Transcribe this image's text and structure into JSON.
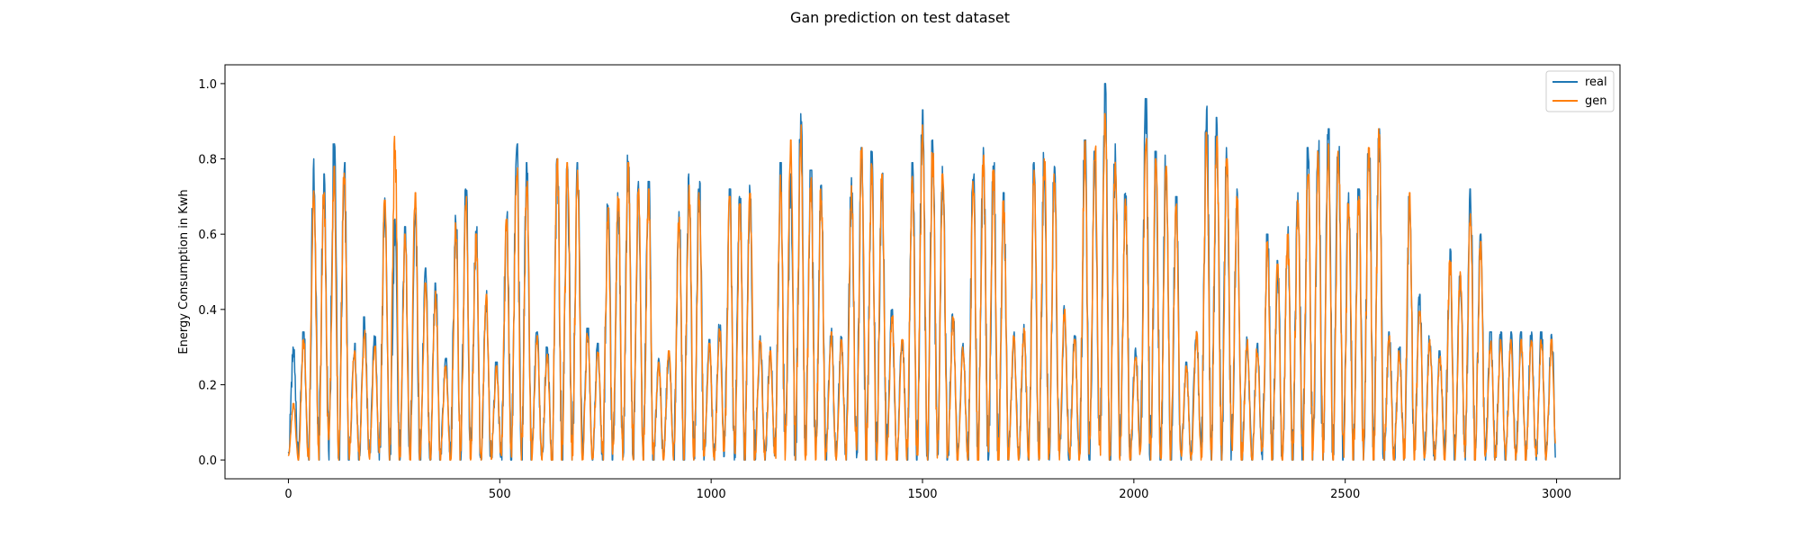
{
  "chart_data": {
    "type": "line",
    "title": "Gan prediction on test dataset",
    "xlabel": "",
    "ylabel": "Energy Consumption in Kwh",
    "xlim": [
      -150,
      3150
    ],
    "ylim": [
      -0.05,
      1.05
    ],
    "x_ticks": [
      0,
      500,
      1000,
      1500,
      2000,
      2500,
      3000
    ],
    "y_ticks": [
      0.0,
      0.2,
      0.4,
      0.6,
      0.8,
      1.0
    ],
    "x_tick_labels": [
      "0",
      "500",
      "1000",
      "1500",
      "2000",
      "2500",
      "3000"
    ],
    "y_tick_labels": [
      "0.0",
      "0.2",
      "0.4",
      "0.6",
      "0.8",
      "1.0"
    ],
    "legend_position": "top-right",
    "grid": false,
    "period": 24,
    "num_points": 2998,
    "series": [
      {
        "name": "real",
        "color": "#1f77b4",
        "daily_peaks": [
          0.3,
          0.34,
          0.8,
          0.76,
          0.84,
          0.79,
          0.31,
          0.38,
          0.33,
          0.71,
          0.64,
          0.62,
          0.68,
          0.51,
          0.47,
          0.27,
          0.65,
          0.72,
          0.62,
          0.45,
          0.26,
          0.66,
          0.84,
          0.79,
          0.34,
          0.3,
          0.8,
          0.78,
          0.79,
          0.35,
          0.31,
          0.68,
          0.71,
          0.81,
          0.74,
          0.74,
          0.27,
          0.3,
          0.68,
          0.76,
          0.74,
          0.32,
          0.36,
          0.72,
          0.7,
          0.73,
          0.33,
          0.3,
          0.79,
          0.76,
          0.92,
          0.77,
          0.73,
          0.35,
          0.33,
          0.75,
          0.83,
          0.82,
          0.78,
          0.4,
          0.33,
          0.79,
          0.93,
          0.85,
          0.78,
          0.39,
          0.31,
          0.76,
          0.83,
          0.79,
          0.71,
          0.34,
          0.36,
          0.79,
          0.82,
          0.78,
          0.41,
          0.33,
          0.85,
          0.82,
          1.0,
          0.84,
          0.73,
          0.3,
          0.96,
          0.82,
          0.81,
          0.7,
          0.26,
          0.35,
          0.94,
          0.91,
          0.83,
          0.72,
          0.33,
          0.31,
          0.6,
          0.53,
          0.62,
          0.71,
          0.83,
          0.85,
          0.88,
          0.87,
          0.71,
          0.72,
          0.87,
          0.88,
          0.34,
          0.3,
          0.7,
          0.44,
          0.33,
          0.29,
          0.56,
          0.52,
          0.72,
          0.6,
          0.34
        ]
      },
      {
        "name": "gen",
        "color": "#ff7f0e",
        "daily_peaks": [
          0.15,
          0.32,
          0.72,
          0.71,
          0.78,
          0.77,
          0.29,
          0.35,
          0.31,
          0.69,
          0.86,
          0.6,
          0.71,
          0.47,
          0.45,
          0.25,
          0.63,
          0.7,
          0.6,
          0.44,
          0.25,
          0.64,
          0.78,
          0.74,
          0.33,
          0.29,
          0.8,
          0.79,
          0.77,
          0.34,
          0.3,
          0.67,
          0.7,
          0.79,
          0.72,
          0.72,
          0.26,
          0.29,
          0.66,
          0.73,
          0.71,
          0.31,
          0.35,
          0.7,
          0.68,
          0.71,
          0.32,
          0.29,
          0.77,
          0.85,
          0.89,
          0.75,
          0.72,
          0.34,
          0.32,
          0.73,
          0.83,
          0.8,
          0.76,
          0.39,
          0.32,
          0.77,
          0.89,
          0.82,
          0.76,
          0.38,
          0.3,
          0.74,
          0.81,
          0.77,
          0.69,
          0.33,
          0.35,
          0.77,
          0.8,
          0.76,
          0.4,
          0.32,
          0.85,
          0.84,
          0.92,
          0.81,
          0.71,
          0.29,
          0.86,
          0.8,
          0.78,
          0.68,
          0.25,
          0.34,
          0.87,
          0.86,
          0.8,
          0.7,
          0.32,
          0.3,
          0.58,
          0.52,
          0.6,
          0.69,
          0.8,
          0.82,
          0.84,
          0.82,
          0.69,
          0.7,
          0.83,
          0.88,
          0.33,
          0.29,
          0.71,
          0.42,
          0.32,
          0.28,
          0.53,
          0.5,
          0.67,
          0.58,
          0.32
        ]
      }
    ]
  }
}
